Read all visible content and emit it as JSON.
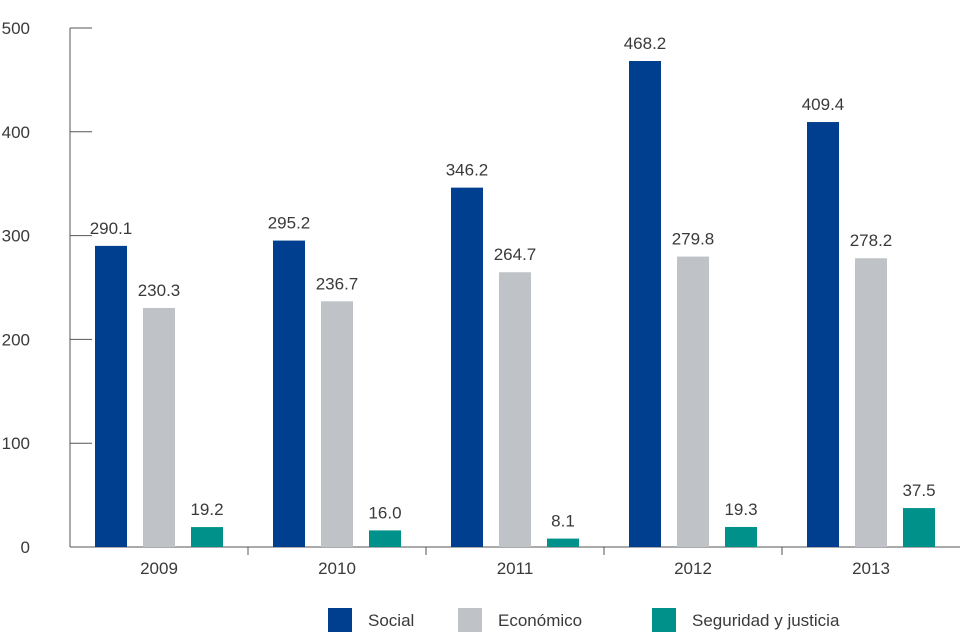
{
  "chart_data": {
    "type": "bar",
    "categories": [
      "2009",
      "2010",
      "2011",
      "2012",
      "2013"
    ],
    "series": [
      {
        "name": "Social",
        "color": "#003f8f",
        "values": [
          290.1,
          295.2,
          346.2,
          468.2,
          409.4
        ],
        "labels": [
          "290.1",
          "295.2",
          "346.2",
          "468.2",
          "409.4"
        ]
      },
      {
        "name": "Económico",
        "color": "#bfc3c8",
        "values": [
          230.3,
          236.7,
          264.7,
          279.8,
          278.2
        ],
        "labels": [
          "230.3",
          "236.7",
          "264.7",
          "279.8",
          "278.2"
        ]
      },
      {
        "name": "Seguridad y justicia",
        "color": "#00928a",
        "values": [
          19.2,
          16.0,
          8.1,
          19.3,
          37.5
        ],
        "labels": [
          "19.2",
          "16.0",
          "8.1",
          "19.3",
          "37.5"
        ]
      }
    ],
    "yticks": [
      "0",
      "100",
      "200",
      "300",
      "400",
      "500"
    ],
    "ylim": [
      0,
      500
    ],
    "grid": false,
    "legend": "bottom",
    "title": "",
    "xlabel": "",
    "ylabel": ""
  }
}
